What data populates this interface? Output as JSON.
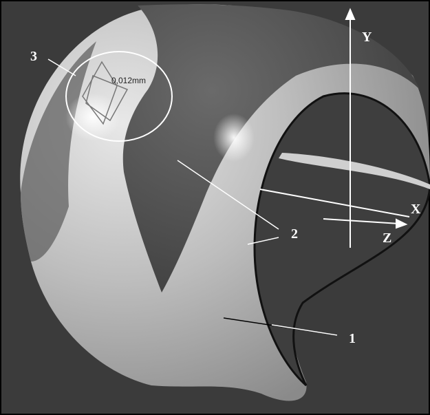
{
  "labels": {
    "axis_y": "Y",
    "axis_x": "X",
    "axis_z": "Z",
    "callout_1": "1",
    "callout_2": "2",
    "callout_3": "3",
    "measurement": "0,012mm"
  }
}
